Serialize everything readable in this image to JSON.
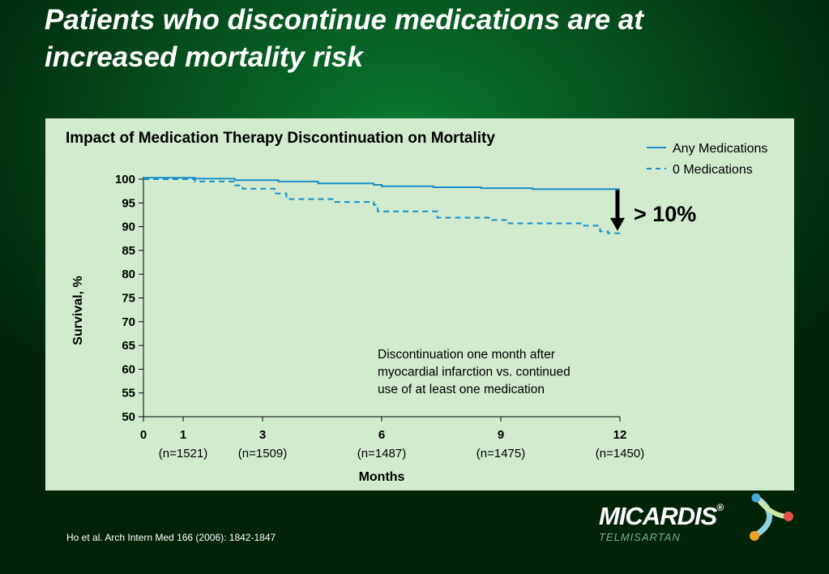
{
  "slide": {
    "title": "Patients who discontinue medications are at increased mortality risk",
    "citation": "Ho et al. Arch Intern Med 166 (2006): 1842-1847"
  },
  "logo": {
    "name": "MICARDIS",
    "registered_mark": "®",
    "subtitle": "TELMISARTAN"
  },
  "chart_data": {
    "type": "line",
    "title": "Impact of Medication Therapy Discontinuation on Mortality",
    "xlabel": "Months",
    "ylabel": "Survival, %",
    "xlim": [
      0,
      12
    ],
    "ylim": [
      50,
      100
    ],
    "y_ticks": [
      50,
      55,
      60,
      65,
      70,
      75,
      80,
      85,
      90,
      95,
      100
    ],
    "x_ticks": [
      {
        "value": 0,
        "label": "0",
        "n": ""
      },
      {
        "value": 1,
        "label": "1",
        "n": "(n=1521)"
      },
      {
        "value": 3,
        "label": "3",
        "n": "(n=1509)"
      },
      {
        "value": 6,
        "label": "6",
        "n": "(n=1487)"
      },
      {
        "value": 9,
        "label": "9",
        "n": "(n=1475)"
      },
      {
        "value": 12,
        "label": "12",
        "n": "(n=1450)"
      }
    ],
    "legend_position": "top-right",
    "grid": false,
    "series": [
      {
        "name": "Any Medications",
        "style": "solid",
        "color": "#1a8fc9",
        "points": [
          [
            0,
            100.3
          ],
          [
            1.3,
            100.3
          ],
          [
            1.3,
            100.1
          ],
          [
            2.3,
            100.1
          ],
          [
            2.3,
            99.8
          ],
          [
            3.4,
            99.8
          ],
          [
            3.4,
            99.5
          ],
          [
            4.4,
            99.5
          ],
          [
            4.4,
            99.1
          ],
          [
            5.8,
            99.1
          ],
          [
            5.8,
            98.8
          ],
          [
            6.0,
            98.8
          ],
          [
            6.0,
            98.5
          ],
          [
            7.3,
            98.5
          ],
          [
            7.3,
            98.3
          ],
          [
            8.5,
            98.3
          ],
          [
            8.5,
            98.1
          ],
          [
            9.8,
            98.1
          ],
          [
            9.8,
            97.9
          ],
          [
            12.0,
            97.9
          ]
        ]
      },
      {
        "name": "0 Medications",
        "style": "dashed",
        "color": "#1a8fc9",
        "points": [
          [
            0,
            100.0
          ],
          [
            1.3,
            100.0
          ],
          [
            1.3,
            99.5
          ],
          [
            2.3,
            99.5
          ],
          [
            2.3,
            98.7
          ],
          [
            2.5,
            98.7
          ],
          [
            2.5,
            98.0
          ],
          [
            3.3,
            98.0
          ],
          [
            3.3,
            97.0
          ],
          [
            3.6,
            97.0
          ],
          [
            3.6,
            95.8
          ],
          [
            4.8,
            95.8
          ],
          [
            4.8,
            95.2
          ],
          [
            5.8,
            95.2
          ],
          [
            5.8,
            94.6
          ],
          [
            5.9,
            94.6
          ],
          [
            5.9,
            93.2
          ],
          [
            7.4,
            93.2
          ],
          [
            7.4,
            91.9
          ],
          [
            8.7,
            91.9
          ],
          [
            8.7,
            91.4
          ],
          [
            9.2,
            91.4
          ],
          [
            9.2,
            90.7
          ],
          [
            11.1,
            90.7
          ],
          [
            11.1,
            90.2
          ],
          [
            11.5,
            90.2
          ],
          [
            11.5,
            89.0
          ],
          [
            11.7,
            89.0
          ],
          [
            11.7,
            88.6
          ],
          [
            12.0,
            88.6
          ]
        ]
      }
    ],
    "annotations": [
      {
        "text_lines": [
          "Discontinuation one month after",
          "myocardial infarction vs. continued",
          "use of at least one medication"
        ]
      },
      {
        "text": "> 10%",
        "from_y": 97.9,
        "to_y": 88.6,
        "at_x": 12
      }
    ]
  }
}
